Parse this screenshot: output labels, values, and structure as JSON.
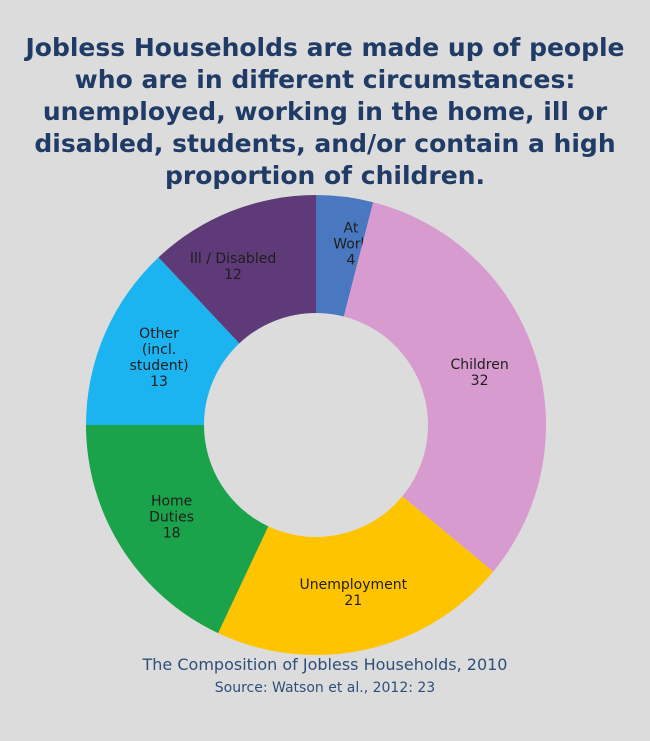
{
  "title_lines": [
    "Jobless Households are made up of people",
    "who are in different circumstances:",
    "unemployed, working in the home, ill or",
    "disabled, students, and/or contain a high",
    "proportion of children."
  ],
  "caption": "The Composition of Jobless Households, 2010",
  "source": "Source: Watson et al., 2012: 23",
  "chart_data": {
    "type": "pie",
    "variant": "donut",
    "start": "12 o'clock",
    "direction": "clockwise",
    "slices": [
      {
        "label_lines": [
          "At",
          "Work"
        ],
        "value": 4,
        "color": "#4a78c0"
      },
      {
        "label_lines": [
          "Children"
        ],
        "value": 32,
        "color": "#d89bd0"
      },
      {
        "label_lines": [
          "Unemployment"
        ],
        "value": 21,
        "color": "#ffc400"
      },
      {
        "label_lines": [
          "Home",
          "Duties"
        ],
        "value": 18,
        "color": "#1aa34a"
      },
      {
        "label_lines": [
          "Other",
          "(incl.",
          "student)"
        ],
        "value": 13,
        "color": "#1cb4f0"
      },
      {
        "label_lines": [
          "Ill / Disabled"
        ],
        "value": 12,
        "color": "#5e3a78"
      }
    ]
  }
}
